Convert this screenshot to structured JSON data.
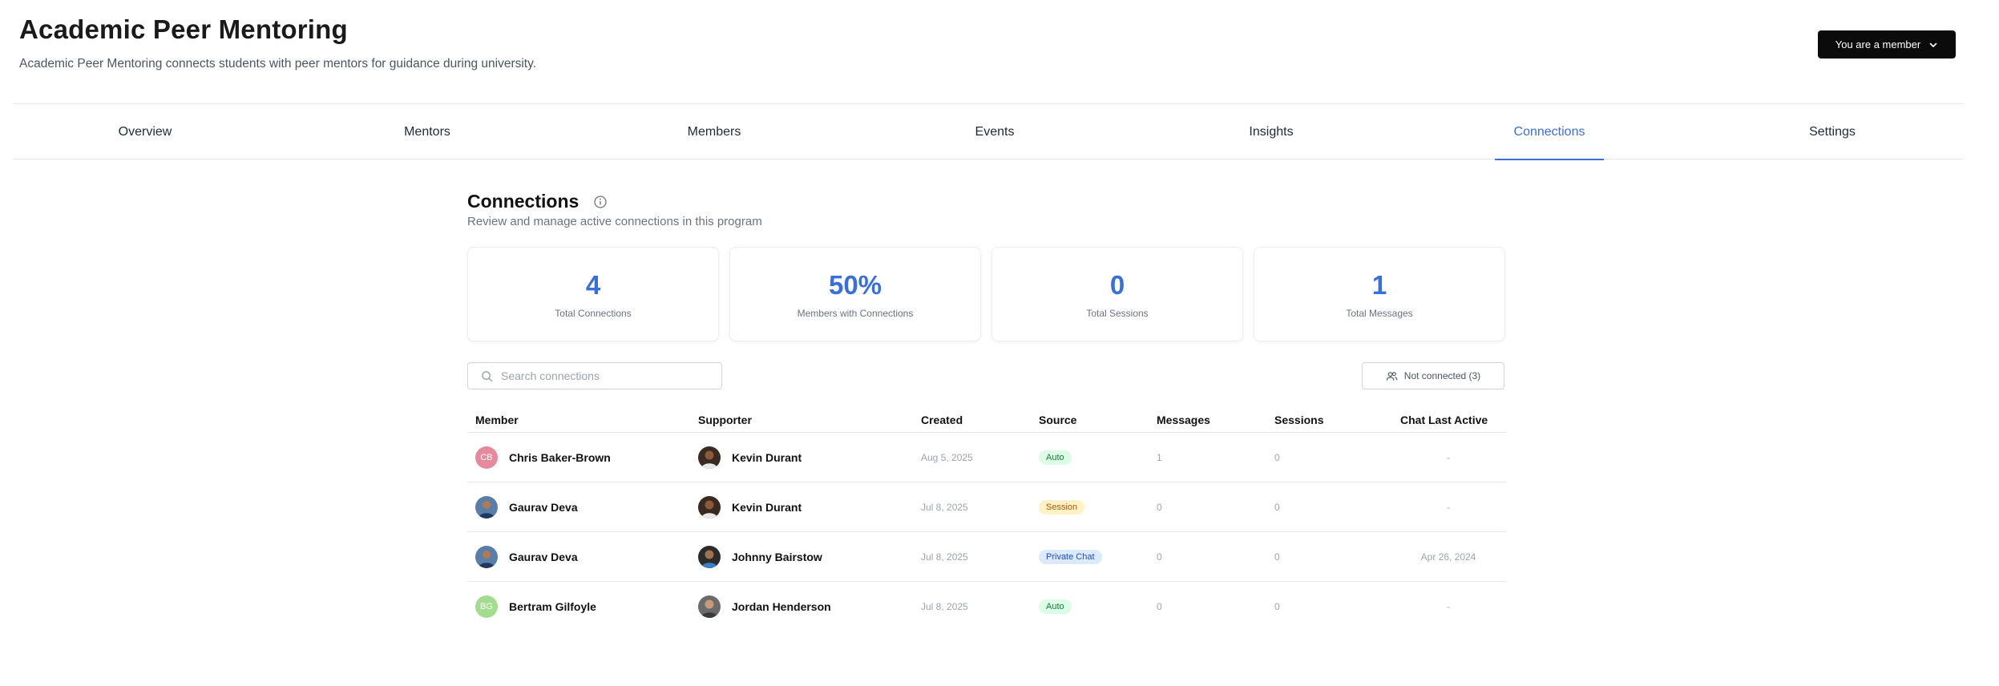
{
  "header": {
    "title": "Academic Peer Mentoring",
    "subtitle": "Academic Peer Mentoring connects students with peer mentors for guidance during university.",
    "membership_label": "You are a member"
  },
  "tabs": [
    {
      "label": "Overview"
    },
    {
      "label": "Mentors"
    },
    {
      "label": "Members"
    },
    {
      "label": "Events"
    },
    {
      "label": "Insights"
    },
    {
      "label": "Connections",
      "active": true
    },
    {
      "label": "Settings"
    }
  ],
  "connections": {
    "title": "Connections",
    "subtitle": "Review and manage active connections in this program",
    "stats": [
      {
        "value": "4",
        "label": "Total Connections"
      },
      {
        "value": "50%",
        "label": "Members with Connections"
      },
      {
        "value": "0",
        "label": "Total Sessions"
      },
      {
        "value": "1",
        "label": "Total Messages"
      }
    ],
    "search_placeholder": "Search connections",
    "not_connected_label": "Not connected (3)",
    "columns": [
      "Member",
      "Supporter",
      "Created",
      "Source",
      "Messages",
      "Sessions",
      "Chat Last Active"
    ],
    "rows": [
      {
        "member": "Chris Baker-Brown",
        "member_initials": "CB",
        "member_avatar_color": "#e58a9d",
        "supporter": "Kevin Durant",
        "created": "Aug 5, 2025",
        "source": "Auto",
        "messages": "1",
        "sessions": "0",
        "last_active": "-"
      },
      {
        "member": "Gaurav Deva",
        "member_initials": "",
        "member_avatar_color": "#3b5f8f",
        "supporter": "Kevin Durant",
        "created": "Jul 8, 2025",
        "source": "Session",
        "messages": "0",
        "sessions": "0",
        "last_active": "-"
      },
      {
        "member": "Gaurav Deva",
        "member_initials": "",
        "member_avatar_color": "#3b5f8f",
        "supporter": "Johnny Bairstow",
        "created": "Jul 8, 2025",
        "source": "Private Chat",
        "messages": "0",
        "sessions": "0",
        "last_active": "Apr 26, 2024"
      },
      {
        "member": "Bertram Gilfoyle",
        "member_initials": "BG",
        "member_avatar_color": "#a3dc8f",
        "supporter": "Jordan Henderson",
        "created": "Jul 8, 2025",
        "source": "Auto",
        "messages": "0",
        "sessions": "0",
        "last_active": "-"
      }
    ]
  },
  "colors": {
    "accent": "#3b6fd8",
    "auto_badge": "#dcfce7",
    "session_badge": "#fef3c7",
    "private_chat_badge": "#dbeafe"
  },
  "icons": [
    "chevron-down-icon",
    "info-icon",
    "search-icon",
    "users-icon"
  ]
}
